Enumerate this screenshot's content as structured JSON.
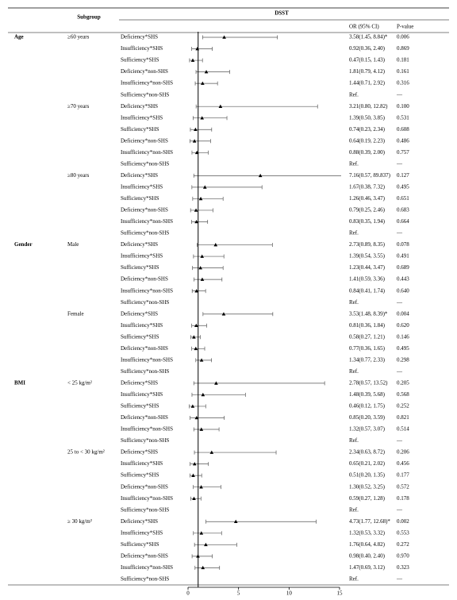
{
  "chart_data": {
    "type": "forest",
    "title": "DSST",
    "columns": {
      "subgroup": "Subgroup",
      "estimate": "OR (95% CI)",
      "p": "P-value"
    },
    "xlim": [
      0,
      15
    ],
    "xticks": [
      0,
      5,
      10,
      15
    ],
    "reference": 1,
    "color": "#000000",
    "groups": [
      {
        "name": "Age",
        "subgroups": [
          {
            "name": "≥60 years",
            "rows": [
              {
                "name": "Deficiency*SHS",
                "or": 3.58,
                "ci": [
                  1.45,
                  8.84
                ],
                "label": "3.58(1.45, 8.84)*",
                "p": "0.006"
              },
              {
                "name": "Insufficiency*SHS",
                "or": 0.92,
                "ci": [
                  0.36,
                  2.4
                ],
                "label": "0.92(0.36, 2.40)",
                "p": "0.869"
              },
              {
                "name": "Sufficiency*SHS",
                "or": 0.47,
                "ci": [
                  0.15,
                  1.43
                ],
                "label": "0.47(0.15, 1.43)",
                "p": "0.181"
              },
              {
                "name": "Deficiency*non-SHS",
                "or": 1.81,
                "ci": [
                  0.79,
                  4.12
                ],
                "label": "1.81(0.79, 4.12)",
                "p": "0.161"
              },
              {
                "name": "Insufficiency*non-SHS",
                "or": 1.44,
                "ci": [
                  0.71,
                  2.92
                ],
                "label": "1.44(0.71, 2.92)",
                "p": "0.316"
              },
              {
                "name": "Sufficiency*non-SHS",
                "label": "Ref.",
                "p": "—"
              }
            ]
          },
          {
            "name": "≥70 years",
            "rows": [
              {
                "name": "Deficiency*SHS",
                "or": 3.21,
                "ci": [
                  0.8,
                  12.82
                ],
                "label": "3.21(0.80, 12.82)",
                "p": "0.100"
              },
              {
                "name": "Insufficiency*SHS",
                "or": 1.39,
                "ci": [
                  0.5,
                  3.85
                ],
                "label": "1.39(0.50, 3.85)",
                "p": "0.531"
              },
              {
                "name": "Sufficiency*SHS",
                "or": 0.74,
                "ci": [
                  0.23,
                  2.34
                ],
                "label": "0.74(0.23, 2.34)",
                "p": "0.608"
              },
              {
                "name": "Deficiency*non-SHS",
                "or": 0.64,
                "ci": [
                  0.19,
                  2.23
                ],
                "label": "0.64(0.19, 2.23)",
                "p": "0.486"
              },
              {
                "name": "Insufficiency*non-SHS",
                "or": 0.88,
                "ci": [
                  0.39,
                  2.0
                ],
                "label": "0.88(0.39, 2.00)",
                "p": "0.757"
              },
              {
                "name": "Sufficiency*non-SHS",
                "label": "Ref.",
                "p": "—"
              }
            ]
          },
          {
            "name": "≥80 years",
            "rows": [
              {
                "name": "Deficiency*SHS",
                "or": 7.16,
                "ci": [
                  0.57,
                  89.837
                ],
                "label": "7.16(0.57, 89.837)",
                "p": "0.127"
              },
              {
                "name": "Insufficiency*SHS",
                "or": 1.67,
                "ci": [
                  0.38,
                  7.32
                ],
                "label": "1.67(0.38, 7.32)",
                "p": "0.495"
              },
              {
                "name": "Sufficiency*SHS",
                "or": 1.26,
                "ci": [
                  0.46,
                  3.47
                ],
                "label": "1.26(0.46, 3.47)",
                "p": "0.651"
              },
              {
                "name": "Deficiency*non-SHS",
                "or": 0.79,
                "ci": [
                  0.25,
                  2.46
                ],
                "label": "0.79(0.25, 2.46)",
                "p": "0.683"
              },
              {
                "name": "Insufficiency*non-SHS",
                "or": 0.83,
                "ci": [
                  0.35,
                  1.94
                ],
                "label": "0.83(0.35, 1.94)",
                "p": "0.664"
              },
              {
                "name": "Sufficiency*non-SHS",
                "label": "Ref.",
                "p": "—"
              }
            ]
          }
        ]
      },
      {
        "name": "Gender",
        "subgroups": [
          {
            "name": "Male",
            "rows": [
              {
                "name": "Deficiency*SHS",
                "or": 2.73,
                "ci": [
                  0.89,
                  8.35
                ],
                "label": "2.73(0.89, 8.35)",
                "p": "0.078"
              },
              {
                "name": "Insufficiency*SHS",
                "or": 1.39,
                "ci": [
                  0.54,
                  3.55
                ],
                "label": "1.39(0.54, 3.55)",
                "p": "0.491"
              },
              {
                "name": "Sufficiency*SHS",
                "or": 1.23,
                "ci": [
                  0.44,
                  3.47
                ],
                "label": "1.23(0.44, 3.47)",
                "p": "0.689"
              },
              {
                "name": "Deficiency*non-SHS",
                "or": 1.41,
                "ci": [
                  0.59,
                  3.36
                ],
                "label": "1.41(0.59, 3.36)",
                "p": "0.443"
              },
              {
                "name": "Insufficiency*non-SHS",
                "or": 0.84,
                "ci": [
                  0.41,
                  1.74
                ],
                "label": "0.84(0.41, 1.74)",
                "p": "0.640"
              },
              {
                "name": "Sufficiency*non-SHS",
                "label": "Ref.",
                "p": "—"
              }
            ]
          },
          {
            "name": "Female",
            "rows": [
              {
                "name": "Deficiency*SHS",
                "or": 3.53,
                "ci": [
                  1.48,
                  8.39
                ],
                "label": "3.53(1.48, 8.39)*",
                "p": "0.004"
              },
              {
                "name": "Insufficiency*SHS",
                "or": 0.81,
                "ci": [
                  0.36,
                  1.84
                ],
                "label": "0.81(0.36, 1.84)",
                "p": "0.620"
              },
              {
                "name": "Sufficiency*SHS",
                "or": 0.58,
                "ci": [
                  0.27,
                  1.21
                ],
                "label": "0.58(0.27, 1.21)",
                "p": "0.146"
              },
              {
                "name": "Deficiency*non-SHS",
                "or": 0.77,
                "ci": [
                  0.36,
                  1.65
                ],
                "label": "0.77(0.36, 1.65)",
                "p": "0.495"
              },
              {
                "name": "Insufficiency*non-SHS",
                "or": 1.34,
                "ci": [
                  0.77,
                  2.33
                ],
                "label": "1.34(0.77, 2.33)",
                "p": "0.298"
              },
              {
                "name": "Sufficiency*non-SHS",
                "label": "Ref.",
                "p": "—"
              }
            ]
          }
        ]
      },
      {
        "name": "BMI",
        "subgroups": [
          {
            "name": "< 25 kg/m²",
            "rows": [
              {
                "name": "Deficiency*SHS",
                "or": 2.78,
                "ci": [
                  0.57,
                  13.52
                ],
                "label": "2.78(0.57, 13.52)",
                "p": "0.205"
              },
              {
                "name": "Insufficiency*SHS",
                "or": 1.48,
                "ci": [
                  0.39,
                  5.68
                ],
                "label": "1.48(0.39, 5.68)",
                "p": "0.568"
              },
              {
                "name": "Sufficiency*SHS",
                "or": 0.46,
                "ci": [
                  0.12,
                  1.75
                ],
                "label": "0.46(0.12, 1.75)",
                "p": "0.252"
              },
              {
                "name": "Deficiency*non-SHS",
                "or": 0.85,
                "ci": [
                  0.2,
                  3.59
                ],
                "label": "0.85(0.20, 3.59)",
                "p": "0.821"
              },
              {
                "name": "Insufficiency*non-SHS",
                "or": 1.32,
                "ci": [
                  0.57,
                  3.07
                ],
                "label": "1.32(0.57, 3.07)",
                "p": "0.514"
              },
              {
                "name": "Sufficiency*non-SHS",
                "label": "Ref.",
                "p": "—"
              }
            ]
          },
          {
            "name": "25 to < 30 kg/m²",
            "rows": [
              {
                "name": "Deficiency*SHS",
                "or": 2.34,
                "ci": [
                  0.63,
                  8.72
                ],
                "label": "2.34(0.63, 8.72)",
                "p": "0.206"
              },
              {
                "name": "Insufficiency*SHS",
                "or": 0.65,
                "ci": [
                  0.21,
                  2.02
                ],
                "label": "0.65(0.21, 2.02)",
                "p": "0.456"
              },
              {
                "name": "Sufficiency*SHS",
                "or": 0.51,
                "ci": [
                  0.2,
                  1.35
                ],
                "label": "0.51(0.20, 1.35)",
                "p": "0.177"
              },
              {
                "name": "Deficiency*non-SHS",
                "or": 1.3,
                "ci": [
                  0.52,
                  3.25
                ],
                "label": "1.30(0.52, 3.25)",
                "p": "0.572"
              },
              {
                "name": "Insufficiency*non-SHS",
                "or": 0.59,
                "ci": [
                  0.27,
                  1.28
                ],
                "label": "0.59(0.27, 1.28)",
                "p": "0.178"
              },
              {
                "name": "Sufficiency*non-SHS",
                "label": "Ref.",
                "p": "—"
              }
            ]
          },
          {
            "name": "≥ 30 kg/m²",
            "rows": [
              {
                "name": "Deficiency*SHS",
                "or": 4.73,
                "ci": [
                  1.77,
                  12.68
                ],
                "label": "4.73(1.77, 12.68)*",
                "p": "0.002"
              },
              {
                "name": "Insufficiency*SHS",
                "or": 1.32,
                "ci": [
                  0.53,
                  3.32
                ],
                "label": "1.32(0.53, 3.32)",
                "p": "0.553"
              },
              {
                "name": "Sufficiency*SHS",
                "or": 1.76,
                "ci": [
                  0.64,
                  4.82
                ],
                "label": "1.76(0.64, 4.82)",
                "p": "0.272"
              },
              {
                "name": "Deficiency*non-SHS",
                "or": 0.98,
                "ci": [
                  0.4,
                  2.4
                ],
                "label": "0.98(0.40, 2.40)",
                "p": "0.970"
              },
              {
                "name": "Insufficiency*non-SHS",
                "or": 1.47,
                "ci": [
                  0.69,
                  3.12
                ],
                "label": "1.47(0.69, 3.12)",
                "p": "0.323"
              },
              {
                "name": "Sufficiency*non-SHS",
                "label": "Ref.",
                "p": "—"
              }
            ]
          }
        ]
      }
    ]
  }
}
